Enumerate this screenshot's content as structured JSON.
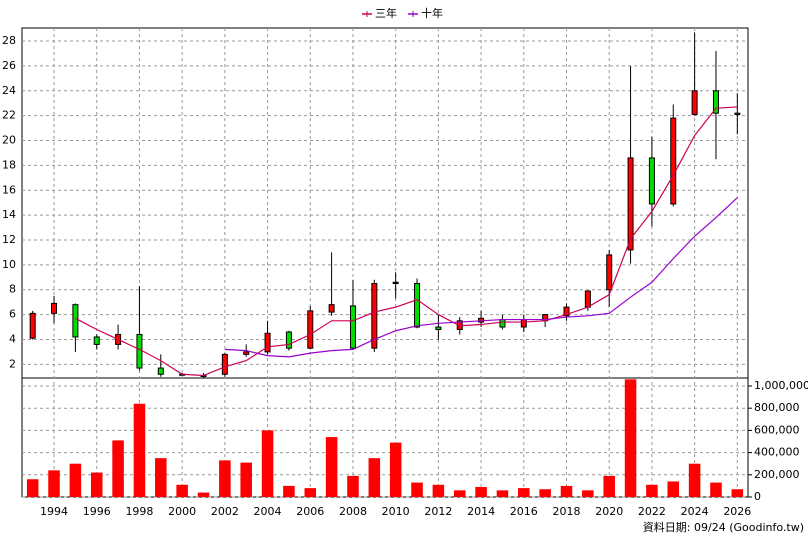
{
  "chart_data": {
    "type": "candlestick",
    "categories": [
      null,
      "1994",
      null,
      "1996",
      null,
      "1998",
      null,
      "2000",
      null,
      "2002",
      null,
      "2004",
      null,
      "2006",
      null,
      "2008",
      null,
      "2010",
      null,
      "2012",
      null,
      "2014",
      null,
      "2016",
      null,
      "2018",
      null,
      "2020",
      null,
      "2022",
      null,
      "2024",
      null,
      "2026"
    ],
    "open": [
      4.1,
      6.1,
      6.8,
      4.2,
      3.6,
      4.4,
      1.7,
      1.2,
      1.1,
      1.2,
      2.8,
      3.0,
      4.6,
      3.3,
      6.2,
      6.7,
      3.3,
      8.5,
      8.5,
      5.0,
      4.8,
      5.4,
      5.6,
      5.0,
      5.5,
      5.9,
      6.6,
      8.0,
      11.2,
      18.6,
      14.9,
      22.1,
      24.0,
      22.2
    ],
    "high": [
      6.3,
      7.5,
      6.9,
      4.4,
      5.2,
      8.3,
      2.8,
      1.3,
      1.3,
      2.9,
      3.6,
      5.5,
      4.7,
      6.7,
      11.0,
      8.8,
      8.8,
      9.4,
      8.9,
      6.0,
      5.8,
      6.3,
      6.0,
      6.0,
      6.0,
      6.9,
      7.9,
      11.2,
      26.0,
      20.3,
      22.9,
      28.7,
      27.2,
      23.8
    ],
    "low": [
      4.0,
      5.3,
      3.0,
      3.2,
      3.2,
      1.5,
      1.0,
      1.1,
      0.9,
      1.0,
      2.6,
      2.8,
      3.1,
      3.2,
      5.9,
      3.2,
      3.0,
      7.3,
      4.9,
      4.0,
      4.4,
      5.0,
      4.8,
      4.6,
      5.0,
      5.5,
      6.3,
      6.6,
      10.1,
      13.1,
      14.7,
      22.0,
      18.5,
      20.5
    ],
    "close": [
      6.1,
      6.9,
      4.2,
      3.6,
      4.4,
      1.7,
      1.2,
      1.2,
      1.1,
      2.8,
      3.0,
      4.5,
      3.3,
      6.3,
      6.8,
      3.3,
      8.5,
      8.6,
      5.0,
      4.8,
      5.5,
      5.7,
      5.0,
      5.6,
      6.0,
      6.6,
      7.9,
      10.8,
      18.6,
      14.9,
      21.8,
      24.0,
      22.2,
      22.1
    ],
    "up_color": "#ff0000",
    "down_color": "#00dd00",
    "series": [
      {
        "name": "三年",
        "color": "#cc0055",
        "values": [
          null,
          null,
          5.7,
          4.8,
          4.0,
          3.2,
          2.3,
          1.2,
          1.1,
          1.8,
          2.3,
          3.4,
          3.6,
          4.4,
          5.5,
          5.5,
          6.2,
          6.6,
          7.2,
          6.0,
          5.1,
          5.2,
          5.4,
          5.4,
          5.5,
          6.0,
          6.6,
          7.6,
          12.1,
          14.3,
          17.2,
          20.4,
          22.6,
          22.7
        ]
      },
      {
        "name": "十年",
        "color": "#9900cc",
        "values": [
          null,
          null,
          null,
          null,
          null,
          null,
          null,
          null,
          null,
          3.2,
          3.1,
          2.7,
          2.6,
          2.9,
          3.1,
          3.2,
          4.0,
          4.7,
          5.1,
          5.3,
          5.4,
          5.5,
          5.6,
          5.6,
          5.6,
          5.8,
          5.9,
          6.1,
          7.4,
          8.6,
          10.5,
          12.3,
          13.8,
          15.4
        ]
      }
    ],
    "ylim": [
      0.9,
      29.05
    ],
    "yticks": [
      2,
      4,
      6,
      8,
      10,
      12,
      14,
      16,
      18,
      20,
      22,
      24,
      26,
      28
    ],
    "grid": true,
    "legend": "top",
    "volume": {
      "color": "#ff0000",
      "values": [
        160000,
        240000,
        300000,
        220000,
        510000,
        840000,
        350000,
        110000,
        40000,
        330000,
        310000,
        600000,
        100000,
        80000,
        540000,
        190000,
        350000,
        490000,
        130000,
        110000,
        60000,
        90000,
        60000,
        80000,
        70000,
        100000,
        60000,
        190000,
        1060000,
        110000,
        140000,
        300000,
        130000,
        70000
      ],
      "ylim": [
        0,
        1072000
      ],
      "yticks": [
        0,
        {
          "value": 200000,
          "label": "200,000"
        },
        {
          "value": 400000,
          "label": "400,000"
        },
        {
          "value": 600000,
          "label": "600,000"
        },
        {
          "value": 800000,
          "label": "800,000"
        },
        {
          "value": 1000000,
          "label": "1,000,000"
        }
      ]
    },
    "source_note": "資料日期: 09/24 (Goodinfo.tw)"
  }
}
